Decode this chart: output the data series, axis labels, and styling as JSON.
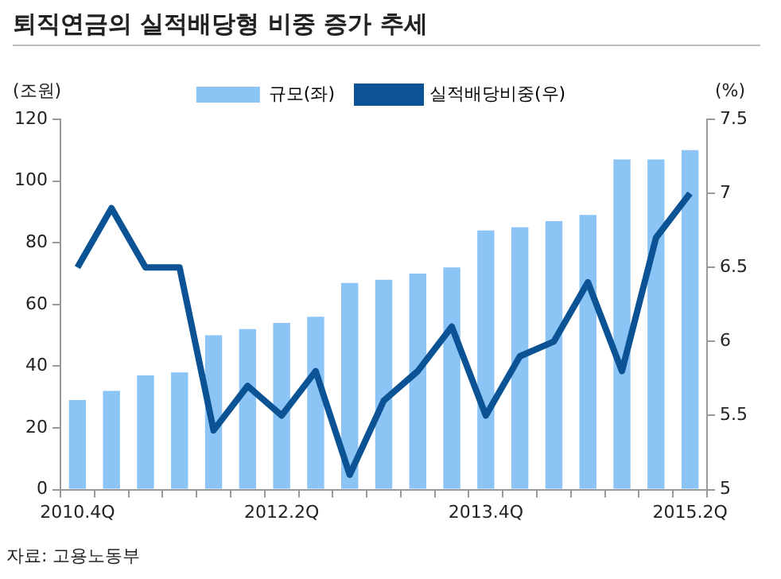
{
  "chart_data": {
    "type": "bar",
    "title": "퇴직연금의 실적배당형 비중 증가 추세",
    "ylabel": "(조원)",
    "y2label": "(%)",
    "categories": [
      "2010.4Q",
      null,
      null,
      null,
      null,
      null,
      "2012.2Q",
      null,
      null,
      null,
      null,
      null,
      "2013.4Q",
      null,
      null,
      null,
      null,
      null,
      "2015.2Q"
    ],
    "series": [
      {
        "name": "규모(좌)",
        "color": "#8cc4f5",
        "values": [
          29,
          32,
          37,
          38,
          50,
          52,
          54,
          56,
          67,
          68,
          70,
          72,
          84,
          85,
          87,
          89,
          107,
          107,
          110
        ]
      },
      {
        "name": "실적배당비중(우)",
        "type": "line",
        "axis": "y2",
        "color": "#0b5394",
        "values": [
          6.5,
          6.9,
          6.5,
          6.5,
          5.4,
          5.7,
          5.5,
          5.8,
          5.1,
          5.6,
          5.8,
          6.1,
          5.5,
          5.9,
          6.0,
          6.4,
          5.8,
          6.7,
          7.0
        ]
      }
    ],
    "ylim": [
      0,
      120
    ],
    "yticks": [
      0,
      20,
      40,
      60,
      80,
      100,
      120
    ],
    "y2lim": [
      5,
      7.5
    ],
    "y2ticks": [
      5,
      5.5,
      6,
      6.5,
      7,
      7.5
    ],
    "grid": false,
    "legend": "top",
    "marker": "none",
    "line_style": "solid",
    "annotations": [
      "자료: 고용노동부"
    ]
  }
}
